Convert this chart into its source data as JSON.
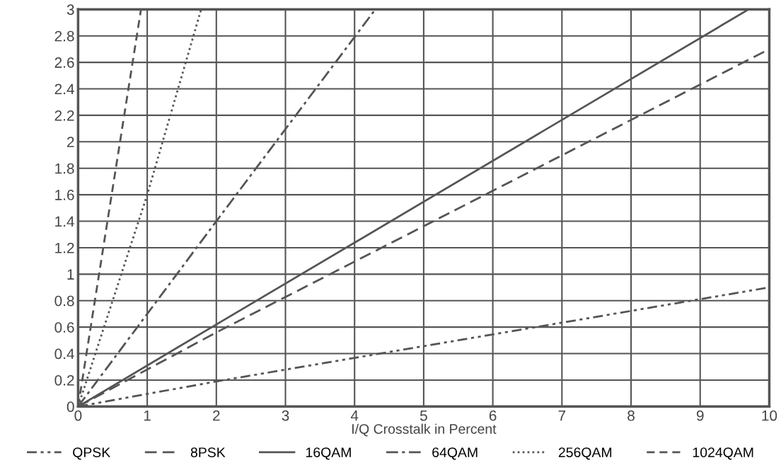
{
  "chart_data": {
    "type": "line",
    "xlabel": "I/Q Crosstalk in Percent",
    "xlim": [
      0,
      10
    ],
    "xticks": [
      0,
      1,
      2,
      3,
      4,
      5,
      6,
      7,
      8,
      9,
      10
    ],
    "ylim": [
      0,
      3
    ],
    "yticks": [
      0,
      0.2,
      0.4,
      0.6,
      0.8,
      1,
      1.2,
      1.4,
      1.6,
      1.8,
      2,
      2.2,
      2.4,
      2.6,
      2.8,
      3
    ],
    "grid": true,
    "legend": "bottom",
    "marker": "none",
    "series": [
      {
        "name": "QPSK",
        "color": "#555555",
        "line_style": "dashdotdot",
        "x": [
          0,
          2,
          10
        ],
        "values": [
          0,
          0.19,
          0.9
        ]
      },
      {
        "name": "8PSK",
        "color": "#555555",
        "line_style": "dashed",
        "x": [
          0,
          2,
          10
        ],
        "values": [
          0,
          0.56,
          2.7
        ]
      },
      {
        "name": "16QAM",
        "color": "#555555",
        "line_style": "solid",
        "x": [
          0,
          2,
          9.7
        ],
        "values": [
          0,
          0.62,
          3
        ]
      },
      {
        "name": "64QAM",
        "color": "#555555",
        "line_style": "dashdot",
        "x": [
          0,
          2,
          4.3
        ],
        "values": [
          0,
          1.4,
          3
        ]
      },
      {
        "name": "256QAM",
        "color": "#555555",
        "line_style": "dotted",
        "x": [
          0,
          1,
          1.78
        ],
        "values": [
          0,
          1.6,
          3
        ]
      },
      {
        "name": "1024QAM",
        "color": "#555555",
        "line_style": "dashed_short",
        "x": [
          0,
          0.91
        ],
        "values": [
          0,
          3
        ]
      }
    ]
  }
}
